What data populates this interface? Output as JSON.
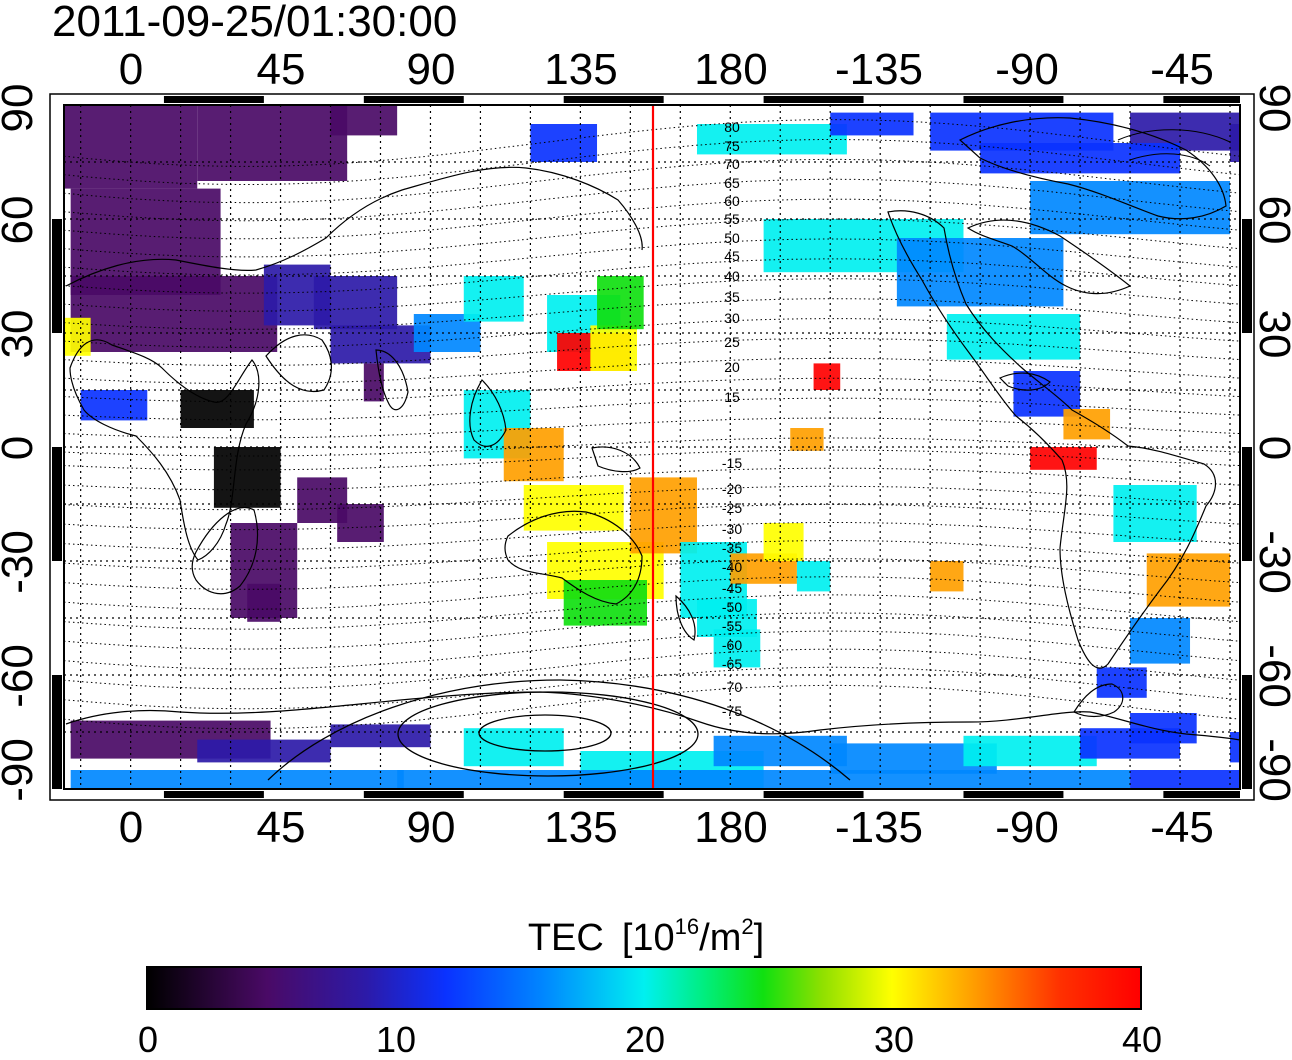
{
  "header": {
    "timestamp": "2011-09-25/01:30:00"
  },
  "map": {
    "projection": "equirectangular",
    "central_longitude": 180,
    "lon_labels": [
      "0",
      "45",
      "90",
      "135",
      "180",
      "-135",
      "-90",
      "-45"
    ],
    "lat_labels_left": [
      "90",
      "60",
      "30",
      "0",
      "-30",
      "-60",
      "-90"
    ],
    "lat_labels_right": [
      "90",
      "60",
      "30",
      "0",
      "-30",
      "-60",
      "-90"
    ],
    "terminator_longitude": 157,
    "contour_labels": [
      "80",
      "75",
      "70",
      "65",
      "60",
      "55",
      "50",
      "45",
      "40",
      "35",
      "30",
      "25",
      "20",
      "15",
      "-15",
      "-20",
      "-25",
      "-30",
      "-35",
      "-40",
      "-45",
      "-50",
      "-55",
      "-60",
      "-65",
      "-70",
      "-75"
    ],
    "colors": {
      "terminator": "#ff0000",
      "grid": "#000000",
      "coastline": "#000000"
    }
  },
  "colorbar": {
    "title_main": "TEC",
    "title_unit_prefix": "[10",
    "title_unit_exp": "16",
    "title_unit_mid": "/m",
    "title_unit_exp2": "2",
    "title_unit_suffix": "]",
    "ticks": [
      "0",
      "10",
      "20",
      "30",
      "40"
    ],
    "min": 0,
    "max": 40,
    "colormap": [
      "#000000",
      "#4a0a66",
      "#2c1aa8",
      "#0a32ff",
      "#0088ff",
      "#00f0f0",
      "#10e010",
      "#ffff00",
      "#ffa000",
      "#ff0000"
    ]
  }
}
